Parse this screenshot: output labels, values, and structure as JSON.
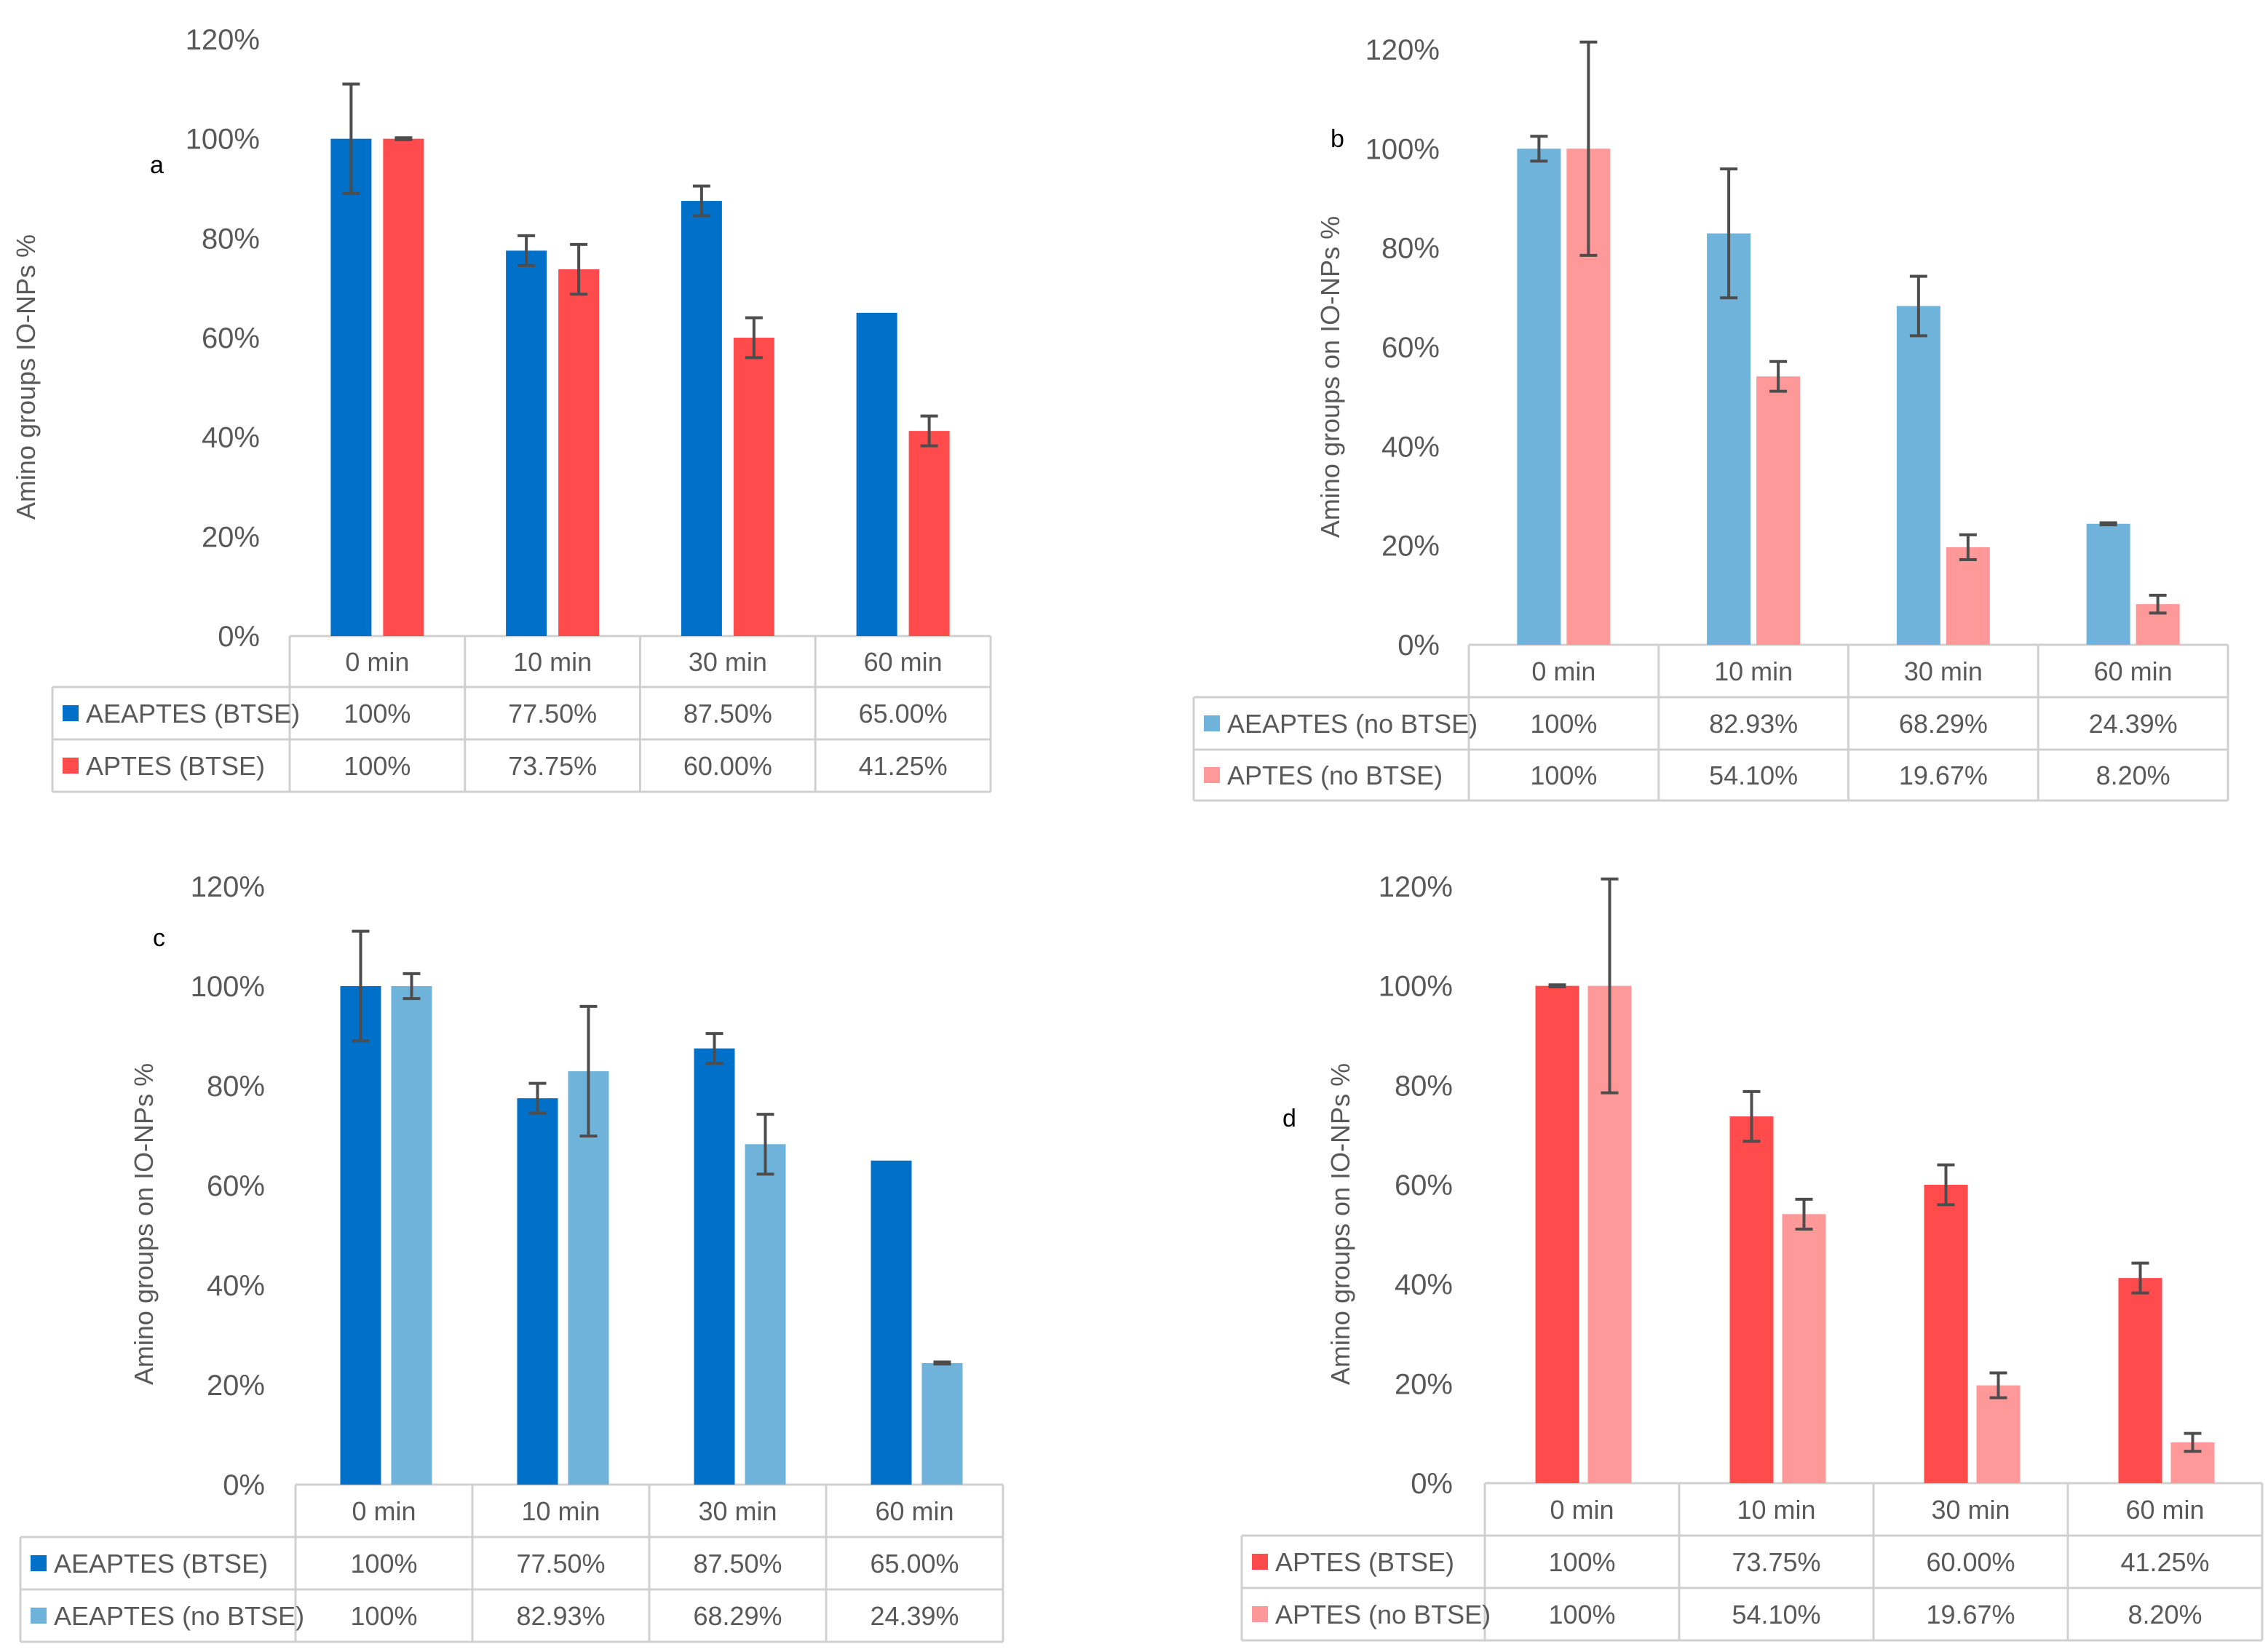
{
  "colors": {
    "aeaptes_btse": "#0070C8",
    "aptes_btse": "#FF4B4B",
    "aeaptes_nobtse": "#6FB3DA",
    "aptes_nobtse": "#FF9999",
    "axis_text": "#595959",
    "grid": "#D0D0D0",
    "error_bar": "#4D4D4D"
  },
  "chart_data": [
    {
      "panel": "a",
      "type": "bar",
      "ylabel": "Amino groups IO-NPs %",
      "ylim": [
        0,
        120
      ],
      "yticks": [
        "0%",
        "20%",
        "40%",
        "60%",
        "80%",
        "100%",
        "120%"
      ],
      "categories": [
        "0 min",
        "10 min",
        "30 min",
        "60 min"
      ],
      "series": [
        {
          "name": "AEAPTES (BTSE)",
          "color_key": "aeaptes_btse",
          "values": [
            100,
            77.5,
            87.5,
            65.0
          ],
          "errors": [
            11,
            3,
            3,
            0
          ],
          "labels": [
            "100%",
            "77.50%",
            "87.50%",
            "65.00%"
          ]
        },
        {
          "name": "APTES (BTSE)",
          "color_key": "aptes_btse",
          "values": [
            100,
            73.75,
            60.0,
            41.25
          ],
          "errors": [
            0.2,
            5,
            4,
            3
          ],
          "labels": [
            "100%",
            "73.75%",
            "60.00%",
            "41.25%"
          ]
        }
      ]
    },
    {
      "panel": "b",
      "type": "bar",
      "ylabel": "Amino groups on IO-NPs %",
      "ylim": [
        0,
        120
      ],
      "yticks": [
        "0%",
        "20%",
        "40%",
        "60%",
        "80%",
        "100%",
        "120%"
      ],
      "categories": [
        "0 min",
        "10 min",
        "30 min",
        "60 min"
      ],
      "series": [
        {
          "name": "AEAPTES (no BTSE)",
          "color_key": "aeaptes_nobtse",
          "values": [
            100,
            82.93,
            68.29,
            24.39
          ],
          "errors": [
            2.5,
            13,
            6,
            0.2
          ],
          "labels": [
            "100%",
            "82.93%",
            "68.29%",
            "24.39%"
          ]
        },
        {
          "name": "APTES (no BTSE)",
          "color_key": "aptes_nobtse",
          "values": [
            100,
            54.1,
            19.67,
            8.2
          ],
          "errors": [
            21.5,
            3,
            2.5,
            1.8
          ],
          "labels": [
            "100%",
            "54.10%",
            "19.67%",
            "8.20%"
          ]
        }
      ]
    },
    {
      "panel": "c",
      "type": "bar",
      "ylabel": "Amino groups on IO-NPs %",
      "ylim": [
        0,
        120
      ],
      "yticks": [
        "0%",
        "20%",
        "40%",
        "60%",
        "80%",
        "100%",
        "120%"
      ],
      "categories": [
        "0 min",
        "10 min",
        "30 min",
        "60 min"
      ],
      "series": [
        {
          "name": "AEAPTES (BTSE)",
          "color_key": "aeaptes_btse",
          "values": [
            100,
            77.5,
            87.5,
            65.0
          ],
          "errors": [
            11,
            3,
            3,
            0
          ],
          "labels": [
            "100%",
            "77.50%",
            "87.50%",
            "65.00%"
          ]
        },
        {
          "name": "AEAPTES (no BTSE)",
          "color_key": "aeaptes_nobtse",
          "values": [
            100,
            82.93,
            68.29,
            24.39
          ],
          "errors": [
            2.5,
            13,
            6,
            0.2
          ],
          "labels": [
            "100%",
            "82.93%",
            "68.29%",
            "24.39%"
          ]
        }
      ]
    },
    {
      "panel": "d",
      "type": "bar",
      "ylabel": "Amino groups on IO-NPs %",
      "ylim": [
        0,
        120
      ],
      "yticks": [
        "0%",
        "20%",
        "40%",
        "60%",
        "80%",
        "100%",
        "120%"
      ],
      "categories": [
        "0 min",
        "10 min",
        "30 min",
        "60 min"
      ],
      "series": [
        {
          "name": "APTES (BTSE)",
          "color_key": "aptes_btse",
          "values": [
            100,
            73.75,
            60.0,
            41.25
          ],
          "errors": [
            0.2,
            5,
            4,
            3
          ],
          "labels": [
            "100%",
            "73.75%",
            "60.00%",
            "41.25%"
          ]
        },
        {
          "name": "APTES (no BTSE)",
          "color_key": "aptes_nobtse",
          "values": [
            100,
            54.1,
            19.67,
            8.2
          ],
          "errors": [
            21.5,
            3,
            2.5,
            1.8
          ],
          "labels": [
            "100%",
            "54.10%",
            "19.67%",
            "8.20%"
          ]
        }
      ]
    }
  ]
}
